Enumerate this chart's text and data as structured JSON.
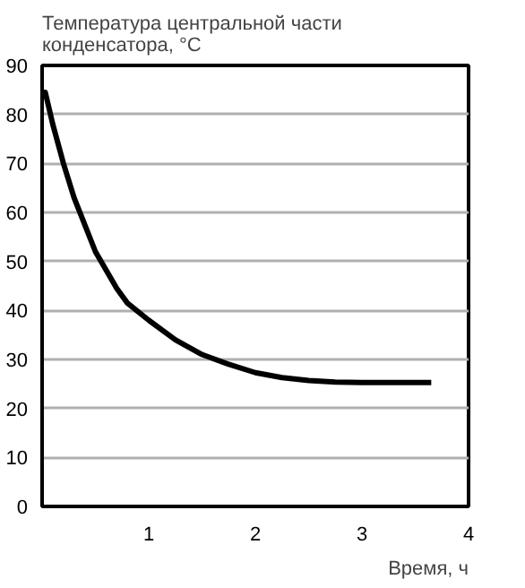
{
  "chart_data": {
    "type": "line",
    "title": "Температура центральной части конденсатора, °C",
    "xlabel": "Время, ч",
    "x": [
      0.0,
      0.03,
      0.1,
      0.2,
      0.3,
      0.5,
      0.7,
      0.8,
      1.0,
      1.25,
      1.5,
      1.75,
      2.0,
      2.25,
      2.5,
      2.75,
      3.0,
      3.3,
      3.65
    ],
    "series": [
      {
        "color": "#000000",
        "values": [
          84.5,
          84.5,
          78,
          70,
          63,
          52,
          44.5,
          41.5,
          38,
          34,
          31,
          29,
          27.3,
          26.3,
          25.7,
          25.4,
          25.3,
          25.3,
          25.3
        ]
      }
    ],
    "xlim": [
      0,
      4
    ],
    "ylim": [
      0,
      90
    ],
    "xticks": [
      1,
      2,
      3,
      4
    ],
    "yticks": [
      0,
      10,
      20,
      30,
      40,
      50,
      60,
      70,
      80,
      90
    ],
    "grid": "y",
    "marker": "none",
    "line_style": "solid"
  }
}
